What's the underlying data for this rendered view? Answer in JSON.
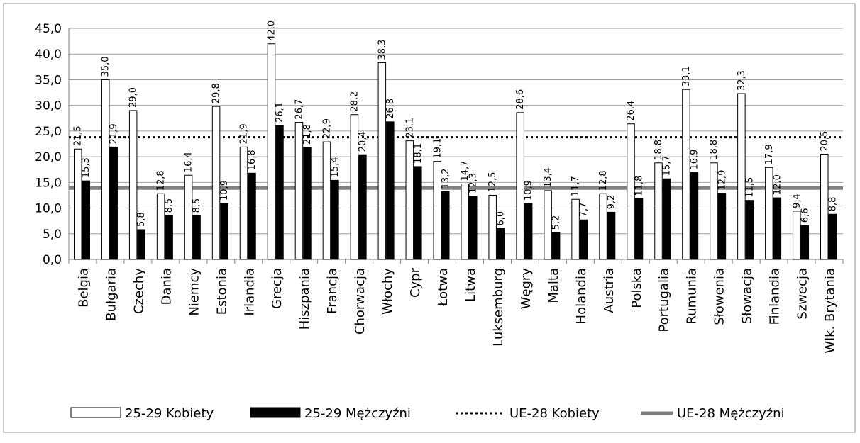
{
  "chart_data": {
    "type": "bar",
    "title": "",
    "xlabel": "",
    "ylabel": "",
    "ylim": [
      0,
      45
    ],
    "yticks": [
      "0,0",
      "5,0",
      "10,0",
      "15,0",
      "20,0",
      "25,0",
      "30,0",
      "35,0",
      "40,0",
      "45,0"
    ],
    "grid": true,
    "legend_position": "bottom",
    "categories": [
      "Belgia",
      "Bułgaria",
      "Czechy",
      "Dania",
      "Niemcy",
      "Estonia",
      "Irlandia",
      "Grecja",
      "Hiszpania",
      "Francja",
      "Chorwacja",
      "Włochy",
      "Cypr",
      "Łotwa",
      "Litwa",
      "Luksemburg",
      "Węgry",
      "Malta",
      "Holandia",
      "Austria",
      "Polska",
      "Portugalia",
      "Rumunia",
      "Słowenia",
      "Słowacja",
      "Finlandia",
      "Szwecja",
      "Wlk. Brytania"
    ],
    "series": [
      {
        "name": "25-29 Kobiety",
        "color": "#ffffff",
        "values": [
          21.5,
          35.0,
          29.0,
          12.8,
          16.4,
          29.8,
          21.9,
          42.0,
          26.7,
          22.9,
          28.2,
          38.3,
          23.1,
          19.1,
          14.7,
          12.5,
          28.6,
          13.4,
          11.7,
          12.8,
          26.4,
          18.8,
          33.1,
          18.8,
          32.3,
          17.9,
          9.4,
          20.5
        ],
        "labels": [
          "21,5",
          "35,0",
          "29,0",
          "12,8",
          "16,4",
          "29,8",
          "21,9",
          "42,0",
          "26,7",
          "22,9",
          "28,2",
          "38,3",
          "23,1",
          "19,1",
          "14,7",
          "12,5",
          "28,6",
          "13,4",
          "11,7",
          "12,8",
          "26,4",
          "18,8",
          "33,1",
          "18,8",
          "32,3",
          "17,9",
          "9,4",
          "20,5"
        ]
      },
      {
        "name": "25-29 Mężczyźni",
        "color": "#000000",
        "values": [
          15.3,
          21.9,
          5.8,
          8.5,
          8.5,
          10.9,
          16.8,
          26.1,
          21.8,
          15.4,
          20.4,
          26.8,
          18.1,
          13.2,
          12.3,
          6.0,
          10.9,
          5.2,
          7.7,
          9.2,
          11.8,
          15.7,
          16.9,
          12.9,
          11.5,
          12.0,
          6.6,
          8.8
        ],
        "labels": [
          "15,3",
          "21,9",
          "5,8",
          "8,5",
          "8,5",
          "10,9",
          "16,8",
          "26,1",
          "21,8",
          "15,4",
          "20,4",
          "26,8",
          "18,1",
          "13,2",
          "12,3",
          "6,0",
          "10,9",
          "5,2",
          "7,7",
          "9,2",
          "11,8",
          "15,7",
          "16,9",
          "12,9",
          "11,5",
          "12,0",
          "6,6",
          "8,8"
        ]
      }
    ],
    "reference_lines": [
      {
        "name": "UE-28 Kobiety",
        "value": 23.8,
        "style": "dotted",
        "color": "#000000"
      },
      {
        "name": "UE-28 Mężczyźni",
        "value": 13.9,
        "style": "solid",
        "color": "#808080"
      }
    ]
  }
}
